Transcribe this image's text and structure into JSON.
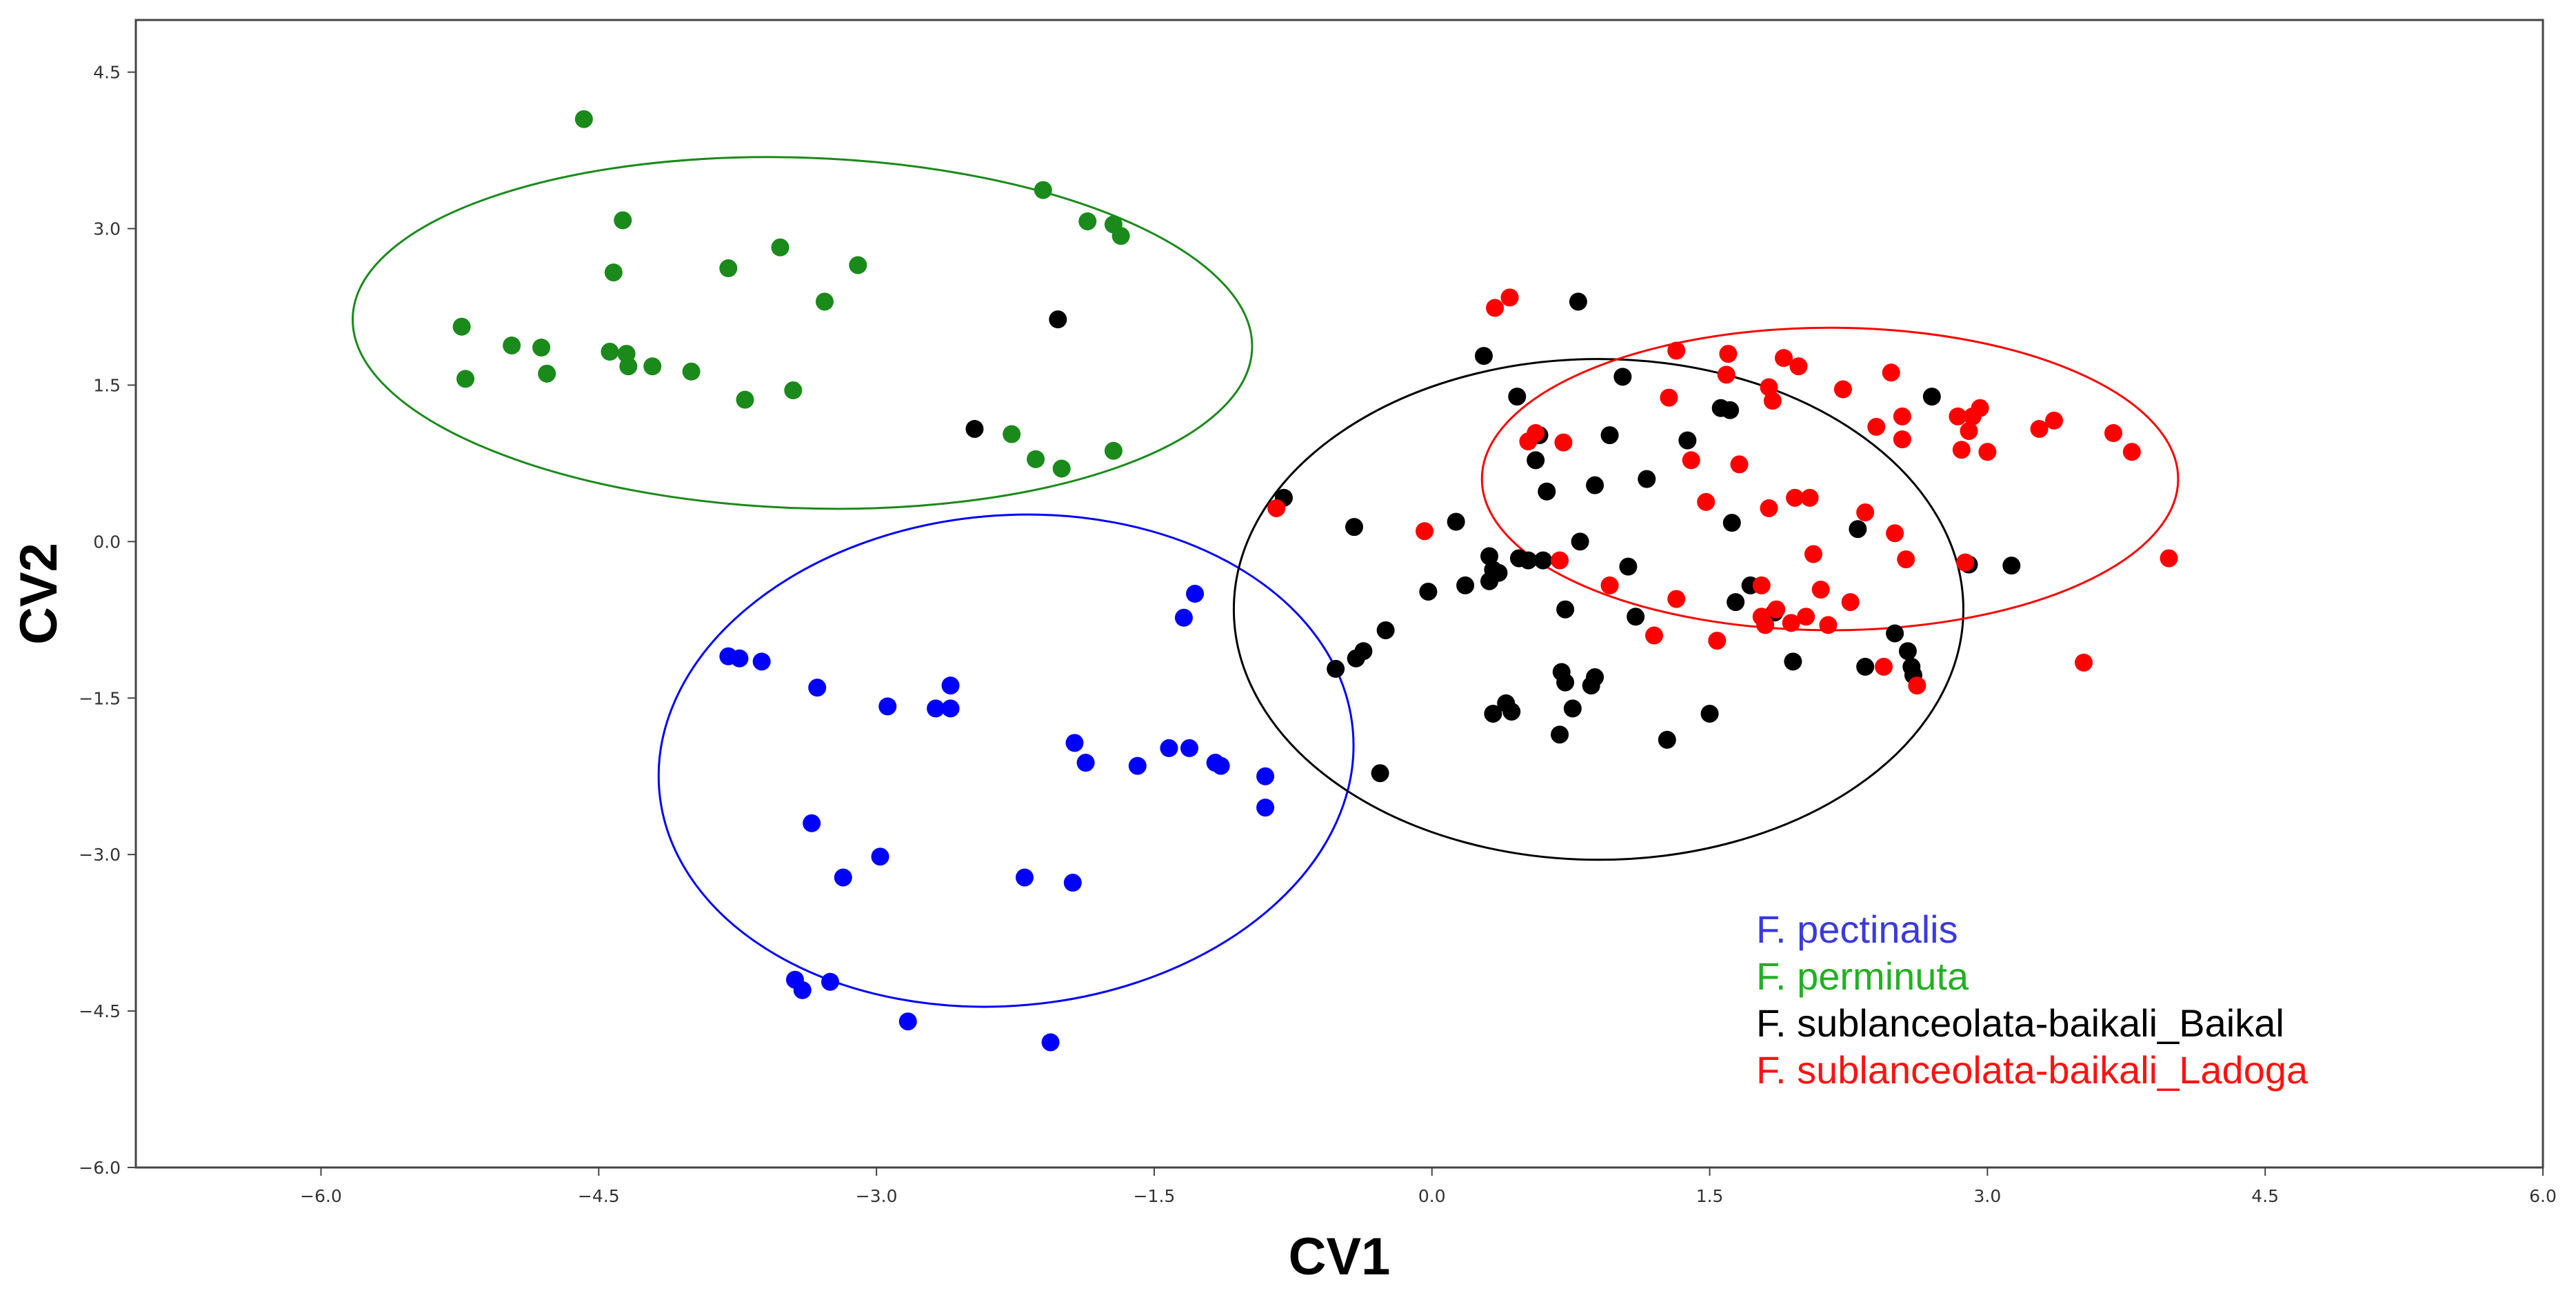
{
  "chart_data": {
    "type": "scatter",
    "title": "",
    "xlabel": "CV1",
    "ylabel": "CV2",
    "xlim": [
      -7.0,
      6.0
    ],
    "ylim": [
      -6.0,
      5.0
    ],
    "x_ticks": [
      -6.0,
      -4.5,
      -3.0,
      -1.5,
      0.0,
      1.5,
      3.0,
      4.5,
      6.0
    ],
    "y_ticks": [
      -6.0,
      -4.5,
      -3.0,
      -1.5,
      0.0,
      1.5,
      3.0,
      4.5
    ],
    "x_tick_labels": [
      "−6.0",
      "−4.5",
      "−3.0",
      "−1.5",
      "0.0",
      "1.5",
      "3.0",
      "4.5",
      "6.0"
    ],
    "y_tick_labels": [
      "−6.0",
      "−4.5",
      "−3.0",
      "−1.5",
      "0.0",
      "1.5",
      "3.0",
      "4.5"
    ],
    "grid": false,
    "legend_position": "bottom-right",
    "series": [
      {
        "name": "F. pectinalis",
        "color": "#0000ff",
        "ellipse": {
          "cx": -2.3,
          "cy": -2.1,
          "rx": 1.88,
          "ry": 2.35,
          "angle_deg": -5
        },
        "points": [
          [
            -3.8,
            -1.1
          ],
          [
            -3.74,
            -1.12
          ],
          [
            -3.62,
            -1.15
          ],
          [
            -3.32,
            -1.4
          ],
          [
            -3.35,
            -2.7
          ],
          [
            -2.94,
            -1.58
          ],
          [
            -2.68,
            -1.6
          ],
          [
            -2.6,
            -1.38
          ],
          [
            -2.6,
            -1.6
          ],
          [
            -3.18,
            -3.22
          ],
          [
            -2.98,
            -3.02
          ],
          [
            -3.44,
            -4.2
          ],
          [
            -3.4,
            -4.3
          ],
          [
            -3.25,
            -4.22
          ],
          [
            -2.83,
            -4.6
          ],
          [
            -2.2,
            -3.22
          ],
          [
            -1.94,
            -3.27
          ],
          [
            -1.93,
            -1.93
          ],
          [
            -1.87,
            -2.12
          ],
          [
            -1.59,
            -2.15
          ],
          [
            -1.42,
            -1.98
          ],
          [
            -1.31,
            -1.98
          ],
          [
            -1.17,
            -2.12
          ],
          [
            -1.14,
            -2.15
          ],
          [
            -0.9,
            -2.25
          ],
          [
            -0.9,
            -2.55
          ],
          [
            -1.34,
            -0.73
          ],
          [
            -1.28,
            -0.5
          ],
          [
            -2.06,
            -4.8
          ]
        ]
      },
      {
        "name": "F. perminuta",
        "color": "#1a8a1a",
        "ellipse": {
          "cx": -3.4,
          "cy": 2.0,
          "rx": 2.43,
          "ry": 1.68,
          "angle_deg": 2
        },
        "points": [
          [
            -4.58,
            4.05
          ],
          [
            -5.24,
            2.06
          ],
          [
            -5.22,
            1.56
          ],
          [
            -4.97,
            1.88
          ],
          [
            -4.81,
            1.86
          ],
          [
            -4.78,
            1.61
          ],
          [
            -4.44,
            1.82
          ],
          [
            -4.42,
            2.58
          ],
          [
            -4.37,
            3.08
          ],
          [
            -4.35,
            1.8
          ],
          [
            -4.34,
            1.68
          ],
          [
            -4.21,
            1.68
          ],
          [
            -4.0,
            1.63
          ],
          [
            -3.8,
            2.62
          ],
          [
            -3.71,
            1.36
          ],
          [
            -3.52,
            2.82
          ],
          [
            -3.45,
            1.45
          ],
          [
            -3.28,
            2.3
          ],
          [
            -3.1,
            2.65
          ],
          [
            -2.27,
            1.03
          ],
          [
            -2.14,
            0.79
          ],
          [
            -2.0,
            0.7
          ],
          [
            -2.1,
            3.37
          ],
          [
            -1.86,
            3.07
          ],
          [
            -1.72,
            3.04
          ],
          [
            -1.68,
            2.93
          ],
          [
            -1.72,
            0.87
          ]
        ]
      },
      {
        "name": "F. sublanceolata-baikali_Baikal",
        "color": "#000000",
        "ellipse": {
          "cx": 0.9,
          "cy": -0.65,
          "rx": 1.97,
          "ry": 2.4,
          "angle_deg": 0
        },
        "points": [
          [
            -2.02,
            2.13
          ],
          [
            -2.47,
            1.08
          ],
          [
            -0.8,
            0.42
          ],
          [
            -0.42,
            0.14
          ],
          [
            -0.52,
            -1.22
          ],
          [
            -0.41,
            -1.12
          ],
          [
            -0.37,
            -1.05
          ],
          [
            -0.25,
            -0.85
          ],
          [
            -0.28,
            -2.22
          ],
          [
            -0.02,
            -0.48
          ],
          [
            0.13,
            0.19
          ],
          [
            0.18,
            -0.42
          ],
          [
            0.28,
            1.78
          ],
          [
            0.31,
            -0.14
          ],
          [
            0.33,
            -0.27
          ],
          [
            0.31,
            -0.38
          ],
          [
            0.36,
            -0.3
          ],
          [
            0.33,
            -1.65
          ],
          [
            0.4,
            -1.55
          ],
          [
            0.43,
            -1.63
          ],
          [
            0.46,
            1.39
          ],
          [
            0.47,
            -0.16
          ],
          [
            0.52,
            -0.18
          ],
          [
            0.6,
            -0.18
          ],
          [
            0.56,
            0.78
          ],
          [
            0.58,
            1.02
          ],
          [
            0.62,
            0.48
          ],
          [
            0.69,
            -1.85
          ],
          [
            0.7,
            -1.25
          ],
          [
            0.72,
            -0.65
          ],
          [
            0.72,
            -1.35
          ],
          [
            0.76,
            -1.6
          ],
          [
            0.79,
            2.3
          ],
          [
            0.8,
            0.0
          ],
          [
            0.86,
            -1.38
          ],
          [
            0.88,
            0.54
          ],
          [
            0.88,
            -1.3
          ],
          [
            0.96,
            1.02
          ],
          [
            1.03,
            1.58
          ],
          [
            1.06,
            -0.24
          ],
          [
            1.1,
            -0.72
          ],
          [
            1.16,
            0.6
          ],
          [
            1.27,
            -1.9
          ],
          [
            1.38,
            0.97
          ],
          [
            1.56,
            1.28
          ],
          [
            1.61,
            1.26
          ],
          [
            1.62,
            0.18
          ],
          [
            1.64,
            -0.58
          ],
          [
            1.72,
            -0.42
          ],
          [
            1.85,
            -0.68
          ],
          [
            1.95,
            -1.15
          ],
          [
            2.3,
            0.12
          ],
          [
            2.34,
            -1.2
          ],
          [
            2.5,
            -0.88
          ],
          [
            2.57,
            -1.05
          ],
          [
            2.59,
            -1.2
          ],
          [
            2.6,
            -1.28
          ],
          [
            2.7,
            1.39
          ],
          [
            2.9,
            -0.22
          ],
          [
            3.13,
            -0.23
          ],
          [
            1.5,
            -1.65
          ]
        ]
      },
      {
        "name": "F. sublanceolata-baikali_Ladoga",
        "color": "#ff0000",
        "ellipse": {
          "cx": 2.15,
          "cy": 0.6,
          "rx": 1.88,
          "ry": 1.45,
          "angle_deg": 0
        },
        "points": [
          [
            -0.84,
            0.32
          ],
          [
            -0.04,
            0.1
          ],
          [
            0.34,
            2.24
          ],
          [
            0.42,
            2.34
          ],
          [
            0.52,
            0.96
          ],
          [
            0.56,
            1.04
          ],
          [
            0.69,
            -0.18
          ],
          [
            0.71,
            0.95
          ],
          [
            0.96,
            -0.42
          ],
          [
            1.2,
            -0.9
          ],
          [
            1.28,
            1.38
          ],
          [
            1.32,
            1.83
          ],
          [
            1.32,
            -0.55
          ],
          [
            1.4,
            0.78
          ],
          [
            1.48,
            0.38
          ],
          [
            1.54,
            -0.95
          ],
          [
            1.6,
            1.8
          ],
          [
            1.59,
            1.6
          ],
          [
            1.66,
            0.74
          ],
          [
            1.78,
            -0.42
          ],
          [
            1.78,
            -0.72
          ],
          [
            1.8,
            -0.8
          ],
          [
            1.82,
            1.48
          ],
          [
            1.84,
            1.35
          ],
          [
            1.86,
            -0.65
          ],
          [
            1.9,
            1.76
          ],
          [
            1.94,
            -0.78
          ],
          [
            1.96,
            0.42
          ],
          [
            1.98,
            1.68
          ],
          [
            2.02,
            -0.72
          ],
          [
            2.04,
            0.42
          ],
          [
            2.06,
            -0.12
          ],
          [
            2.1,
            -0.46
          ],
          [
            2.14,
            -0.8
          ],
          [
            2.22,
            1.46
          ],
          [
            2.26,
            -0.58
          ],
          [
            2.34,
            0.28
          ],
          [
            2.4,
            1.1
          ],
          [
            2.44,
            -1.2
          ],
          [
            2.48,
            1.62
          ],
          [
            2.5,
            0.08
          ],
          [
            2.54,
            1.2
          ],
          [
            2.54,
            0.98
          ],
          [
            2.56,
            -0.17
          ],
          [
            2.62,
            -1.38
          ],
          [
            2.84,
            1.2
          ],
          [
            2.86,
            0.88
          ],
          [
            2.88,
            -0.2
          ],
          [
            2.9,
            1.06
          ],
          [
            2.92,
            1.2
          ],
          [
            2.96,
            1.28
          ],
          [
            3.0,
            0.86
          ],
          [
            3.28,
            1.08
          ],
          [
            3.36,
            1.16
          ],
          [
            3.52,
            -1.16
          ],
          [
            3.68,
            1.04
          ],
          [
            3.78,
            0.86
          ],
          [
            3.98,
            -0.16
          ],
          [
            1.82,
            0.32
          ]
        ]
      }
    ]
  }
}
